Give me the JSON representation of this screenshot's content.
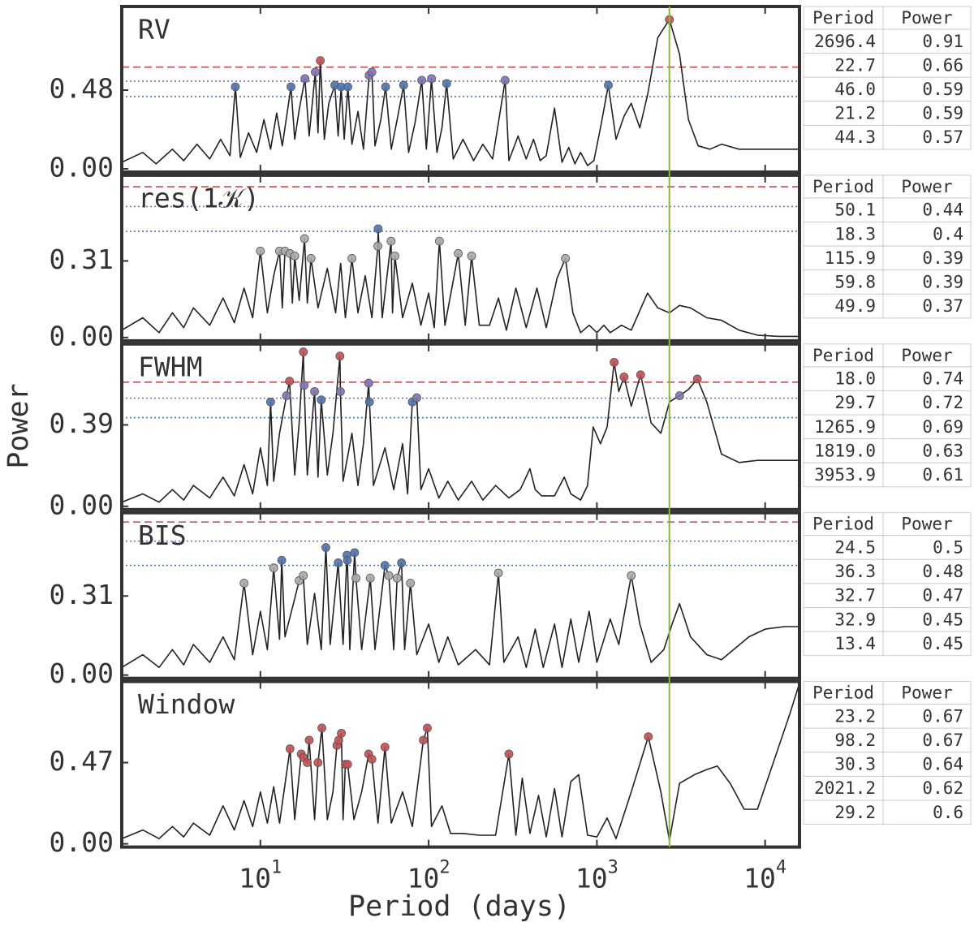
{
  "figure": {
    "xlabel": "Period (days)",
    "ylabel": "Power",
    "xscale": "log",
    "xlim": [
      1.5,
      16000
    ],
    "xticks": [
      {
        "value": 10,
        "label": "10",
        "exponent": "1"
      },
      {
        "value": 100,
        "label": "10",
        "exponent": "2"
      },
      {
        "value": 1000,
        "label": "10",
        "exponent": "3"
      },
      {
        "value": 10000,
        "label": "10",
        "exponent": "4"
      }
    ],
    "vline": {
      "value": 2696.4,
      "color": "#8db83a"
    },
    "peak_default_color": "#a8a8a8",
    "line_color": "#222222"
  },
  "chart_data": [
    {
      "type": "line",
      "title": "RV",
      "ylim": [
        0,
        0.98
      ],
      "yticks": [
        {
          "value": 0,
          "label": "0.00"
        },
        0.48
      ],
      "thresholds": [
        {
          "value": 0.62,
          "color": "#c44e52",
          "dash": "9 5"
        },
        {
          "value": 0.535,
          "color": "#8172b2",
          "dash": "2 3"
        },
        {
          "value": 0.44,
          "color": "#4c72b0",
          "dash": "2 3"
        }
      ],
      "x": [
        1.5,
        2,
        2.4,
        3,
        3.5,
        4.2,
        5,
        5.8,
        6.6,
        7.1,
        7.6,
        8.5,
        9.5,
        10.5,
        11.5,
        12.5,
        13.5,
        15.2,
        16,
        17,
        18.4,
        19.5,
        21.2,
        22,
        22.7,
        24,
        25.5,
        27.7,
        29,
        30.2,
        31.5,
        33.1,
        35,
        38,
        41,
        44.3,
        46,
        48,
        52,
        55.5,
        60,
        65,
        71,
        76,
        83,
        91,
        97,
        104,
        112,
        120,
        128,
        140,
        160,
        185,
        210,
        240,
        285,
        300,
        340,
        380,
        420,
        460,
        500,
        560,
        620,
        680,
        740,
        800,
        880,
        960,
        1050,
        1170,
        1300,
        1450,
        1600,
        1800,
        2000,
        2300,
        2696.4,
        3100,
        3500,
        4000,
        4700,
        5500,
        7000,
        9000,
        12000,
        16000
      ],
      "values": [
        0.04,
        0.1,
        0.03,
        0.12,
        0.05,
        0.15,
        0.06,
        0.18,
        0.08,
        0.5,
        0.07,
        0.22,
        0.1,
        0.3,
        0.12,
        0.34,
        0.14,
        0.5,
        0.18,
        0.36,
        0.55,
        0.2,
        0.59,
        0.22,
        0.66,
        0.18,
        0.4,
        0.51,
        0.2,
        0.5,
        0.18,
        0.5,
        0.15,
        0.35,
        0.12,
        0.57,
        0.59,
        0.14,
        0.3,
        0.5,
        0.12,
        0.3,
        0.51,
        0.1,
        0.28,
        0.54,
        0.12,
        0.55,
        0.1,
        0.25,
        0.52,
        0.06,
        0.18,
        0.05,
        0.15,
        0.06,
        0.54,
        0.05,
        0.2,
        0.06,
        0.18,
        0.05,
        0.08,
        0.37,
        0.04,
        0.13,
        0.03,
        0.1,
        0.02,
        0.05,
        0.25,
        0.51,
        0.18,
        0.32,
        0.4,
        0.25,
        0.45,
        0.8,
        0.91,
        0.7,
        0.3,
        0.14,
        0.12,
        0.15,
        0.12,
        0.12,
        0.12,
        0.12
      ],
      "peaks": {
        "x": [
          7.1,
          15.2,
          18.4,
          21.2,
          22.7,
          27.7,
          30.2,
          33.1,
          44.3,
          46,
          55.5,
          71,
          91,
          104,
          128,
          285,
          1170,
          2696.4
        ],
        "values": [
          0.5,
          0.5,
          0.55,
          0.59,
          0.66,
          0.51,
          0.5,
          0.5,
          0.57,
          0.59,
          0.5,
          0.51,
          0.54,
          0.55,
          0.52,
          0.54,
          0.51,
          0.91
        ]
      },
      "table": {
        "columns": [
          "Period",
          "Power"
        ],
        "rows": [
          [
            "2696.4",
            "0.91"
          ],
          [
            "22.7",
            "0.66"
          ],
          [
            "46.0",
            "0.59"
          ],
          [
            "21.2",
            "0.59"
          ],
          [
            "44.3",
            "0.57"
          ]
        ]
      }
    },
    {
      "type": "line",
      "title": "res(1𝒦)",
      "ylim": [
        0,
        0.65
      ],
      "yticks": [
        {
          "value": 0,
          "label": "0.00"
        },
        0.31
      ],
      "thresholds": [
        {
          "value": 0.61,
          "color": "#c44e52",
          "dash": "9 5"
        },
        {
          "value": 0.53,
          "color": "#8172b2",
          "dash": "2 3"
        },
        {
          "value": 0.43,
          "color": "#4c72b0",
          "dash": "2 3"
        }
      ],
      "x": [
        1.5,
        2,
        2.5,
        3,
        3.5,
        4,
        5,
        6,
        7,
        8,
        9,
        10,
        11,
        12,
        13,
        13.5,
        14,
        15,
        15.5,
        16,
        17,
        18.3,
        19,
        20,
        22,
        25,
        28,
        30,
        32,
        35,
        38,
        42,
        46,
        49.9,
        50.1,
        53,
        59.8,
        61,
        63,
        70,
        80,
        90,
        100,
        108,
        115.9,
        125,
        150,
        165,
        180,
        200,
        230,
        260,
        290,
        330,
        380,
        440,
        500,
        580,
        650,
        720,
        800,
        900,
        1000,
        1100,
        1200,
        1400,
        1600,
        2000,
        2300,
        2700,
        3100,
        3600,
        4500,
        5500,
        7000,
        9000,
        12000,
        16000
      ],
      "values": [
        0.03,
        0.08,
        0.02,
        0.1,
        0.04,
        0.12,
        0.05,
        0.16,
        0.06,
        0.2,
        0.08,
        0.35,
        0.1,
        0.25,
        0.35,
        0.12,
        0.35,
        0.34,
        0.14,
        0.33,
        0.15,
        0.4,
        0.14,
        0.32,
        0.12,
        0.28,
        0.1,
        0.3,
        0.08,
        0.32,
        0.1,
        0.25,
        0.08,
        0.37,
        0.44,
        0.08,
        0.39,
        0.1,
        0.33,
        0.08,
        0.22,
        0.05,
        0.18,
        0.04,
        0.39,
        0.05,
        0.34,
        0.05,
        0.33,
        0.05,
        0.05,
        0.16,
        0.03,
        0.2,
        0.04,
        0.2,
        0.04,
        0.24,
        0.32,
        0.1,
        0.02,
        0.05,
        0.02,
        0.05,
        0.02,
        0.05,
        0.03,
        0.18,
        0.12,
        0.1,
        0.13,
        0.12,
        0.08,
        0.07,
        0.03,
        0.01,
        0.005,
        0.005
      ],
      "peaks": {
        "x": [
          10,
          13,
          14,
          15,
          16,
          18.3,
          20,
          35,
          49.9,
          50.1,
          59.8,
          63,
          115.9,
          150,
          180,
          650
        ],
        "values": [
          0.35,
          0.35,
          0.35,
          0.34,
          0.33,
          0.4,
          0.32,
          0.32,
          0.37,
          0.44,
          0.39,
          0.33,
          0.39,
          0.34,
          0.33,
          0.32
        ]
      },
      "table": {
        "columns": [
          "Period",
          "Power"
        ],
        "rows": [
          [
            "50.1",
            "0.44"
          ],
          [
            "18.3",
            "0.4"
          ],
          [
            "115.9",
            "0.39"
          ],
          [
            "59.8",
            "0.39"
          ],
          [
            "49.9",
            "0.37"
          ]
        ]
      }
    },
    {
      "type": "line",
      "title": "FWHM",
      "ylim": [
        0,
        0.77
      ],
      "yticks": [
        {
          "value": 0,
          "label": "0.00"
        },
        0.39
      ],
      "thresholds": [
        {
          "value": 0.595,
          "color": "#c44e52",
          "dash": "9 5"
        },
        {
          "value": 0.518,
          "color": "#8172b2",
          "dash": "2 3"
        },
        {
          "value": 0.425,
          "color": "#4c72b0",
          "dash": "2 3"
        }
      ],
      "x": [
        1.5,
        2,
        2.5,
        3,
        3.5,
        4,
        5,
        6,
        7,
        8,
        9,
        10,
        11,
        11.5,
        12,
        13,
        14.3,
        14.9,
        16,
        17,
        18.0,
        18.2,
        19,
        21,
        22,
        23,
        25,
        27,
        29.7,
        29.9,
        31,
        35,
        38,
        41,
        44,
        44.5,
        47,
        55,
        62,
        70,
        75,
        80,
        85,
        90,
        100,
        115,
        130,
        150,
        180,
        210,
        250,
        300,
        350,
        400,
        430,
        470,
        560,
        640,
        700,
        800,
        880,
        950,
        1050,
        1150,
        1265.9,
        1350,
        1450,
        1600,
        1819,
        2100,
        2400,
        2700,
        3100,
        3500,
        3953.9,
        4500,
        5500,
        7000,
        9000,
        12000,
        16000
      ],
      "values": [
        0.02,
        0.06,
        0.02,
        0.08,
        0.03,
        0.1,
        0.04,
        0.14,
        0.05,
        0.2,
        0.06,
        0.28,
        0.1,
        0.5,
        0.12,
        0.35,
        0.53,
        0.6,
        0.15,
        0.4,
        0.74,
        0.58,
        0.15,
        0.55,
        0.14,
        0.51,
        0.15,
        0.35,
        0.72,
        0.55,
        0.12,
        0.35,
        0.1,
        0.3,
        0.59,
        0.5,
        0.1,
        0.28,
        0.08,
        0.3,
        0.06,
        0.5,
        0.52,
        0.08,
        0.18,
        0.04,
        0.12,
        0.03,
        0.12,
        0.03,
        0.1,
        0.04,
        0.08,
        0.18,
        0.08,
        0.05,
        0.05,
        0.14,
        0.06,
        0.03,
        0.1,
        0.38,
        0.3,
        0.38,
        0.69,
        0.55,
        0.62,
        0.48,
        0.63,
        0.4,
        0.35,
        0.5,
        0.53,
        0.56,
        0.61,
        0.5,
        0.25,
        0.21,
        0.22,
        0.22,
        0.22
      ],
      "peaks": {
        "x": [
          11.5,
          14.3,
          14.9,
          18.0,
          18.2,
          21,
          23,
          29.7,
          29.9,
          44,
          44.5,
          80,
          85,
          1265.9,
          1450,
          1819,
          3100,
          3953.9
        ],
        "values": [
          0.5,
          0.53,
          0.6,
          0.74,
          0.58,
          0.55,
          0.51,
          0.72,
          0.55,
          0.59,
          0.5,
          0.5,
          0.52,
          0.69,
          0.62,
          0.63,
          0.53,
          0.61
        ]
      },
      "table": {
        "columns": [
          "Period",
          "Power"
        ],
        "rows": [
          [
            "18.0",
            "0.74"
          ],
          [
            "29.7",
            "0.72"
          ],
          [
            "1265.9",
            "0.69"
          ],
          [
            "1819.0",
            "0.63"
          ],
          [
            "3953.9",
            "0.61"
          ]
        ]
      }
    },
    {
      "type": "line",
      "title": "BIS",
      "ylim": [
        0,
        0.63
      ],
      "yticks": [
        {
          "value": 0,
          "label": "0.00"
        },
        0.31
      ],
      "thresholds": [
        {
          "value": 0.6,
          "color": "#c44e52",
          "dash": "9 5"
        },
        {
          "value": 0.525,
          "color": "#8172b2",
          "dash": "2 3"
        },
        {
          "value": 0.43,
          "color": "#4c72b0",
          "dash": "2 3"
        }
      ],
      "x": [
        1.5,
        2,
        2.5,
        3,
        3.5,
        4,
        5,
        6,
        7,
        8,
        9,
        10,
        11,
        12,
        13,
        13.4,
        14,
        16,
        17,
        18,
        19,
        21,
        23,
        24.5,
        26,
        29,
        31,
        32.7,
        32.9,
        34,
        36.3,
        37,
        40,
        45,
        48,
        55,
        58,
        62,
        65,
        69,
        72,
        78,
        85,
        100,
        115,
        130,
        150,
        190,
        230,
        260,
        280,
        340,
        380,
        430,
        480,
        560,
        620,
        700,
        780,
        900,
        1000,
        1200,
        1350,
        1600,
        1800,
        2100,
        2500,
        2800,
        3100,
        3600,
        4500,
        5500,
        6500,
        8000,
        10000,
        13000,
        16000
      ],
      "values": [
        0.03,
        0.08,
        0.03,
        0.1,
        0.04,
        0.12,
        0.05,
        0.15,
        0.06,
        0.36,
        0.08,
        0.25,
        0.1,
        0.42,
        0.14,
        0.45,
        0.15,
        0.3,
        0.37,
        0.39,
        0.12,
        0.32,
        0.1,
        0.5,
        0.12,
        0.44,
        0.12,
        0.47,
        0.45,
        0.1,
        0.48,
        0.38,
        0.1,
        0.38,
        0.1,
        0.43,
        0.39,
        0.1,
        0.38,
        0.44,
        0.1,
        0.36,
        0.08,
        0.2,
        0.05,
        0.15,
        0.04,
        0.1,
        0.04,
        0.4,
        0.05,
        0.15,
        0.03,
        0.18,
        0.03,
        0.2,
        0.03,
        0.22,
        0.05,
        0.25,
        0.05,
        0.22,
        0.12,
        0.39,
        0.2,
        0.05,
        0.1,
        0.2,
        0.28,
        0.15,
        0.08,
        0.06,
        0.1,
        0.15,
        0.18,
        0.19,
        0.19
      ],
      "peaks": {
        "x": [
          8,
          12,
          13.4,
          17,
          18,
          24.5,
          29,
          32.7,
          32.9,
          36.3,
          37,
          45,
          55,
          58,
          65,
          69,
          78,
          260,
          1600
        ],
        "values": [
          0.36,
          0.42,
          0.45,
          0.37,
          0.39,
          0.5,
          0.44,
          0.47,
          0.45,
          0.48,
          0.38,
          0.38,
          0.43,
          0.39,
          0.38,
          0.44,
          0.36,
          0.4,
          0.39
        ]
      },
      "table": {
        "columns": [
          "Period",
          "Power"
        ],
        "rows": [
          [
            "24.5",
            "0.5"
          ],
          [
            "36.3",
            "0.48"
          ],
          [
            "32.7",
            "0.47"
          ],
          [
            "32.9",
            "0.45"
          ],
          [
            "13.4",
            "0.45"
          ]
        ]
      }
    },
    {
      "type": "line",
      "title": "Window",
      "ylim": [
        0,
        0.93
      ],
      "yticks": [
        {
          "value": 0,
          "label": "0.00"
        },
        0.47
      ],
      "thresholds": [],
      "peak_color": "#c44e52",
      "x": [
        1.5,
        2,
        2.5,
        3,
        3.5,
        4,
        5,
        6,
        7,
        8,
        9,
        10,
        11,
        12,
        13,
        15,
        16,
        17.5,
        18,
        19,
        19.5,
        21,
        22,
        23.2,
        25,
        27,
        28.5,
        29.2,
        30.3,
        31,
        32,
        33,
        36,
        40,
        44,
        46,
        50,
        55,
        60,
        70,
        80,
        93,
        98.2,
        104,
        120,
        135,
        160,
        200,
        250,
        300,
        330,
        360,
        400,
        450,
        500,
        560,
        620,
        700,
        780,
        880,
        1000,
        1150,
        1300,
        1600,
        2021.2,
        2400,
        2700,
        3100,
        3800,
        4500,
        5200,
        6200,
        7500,
        9000,
        11000,
        14000,
        16000
      ],
      "values": [
        0.03,
        0.08,
        0.03,
        0.1,
        0.04,
        0.12,
        0.05,
        0.22,
        0.08,
        0.25,
        0.1,
        0.3,
        0.12,
        0.33,
        0.12,
        0.55,
        0.14,
        0.52,
        0.5,
        0.47,
        0.6,
        0.14,
        0.47,
        0.67,
        0.14,
        0.3,
        0.57,
        0.6,
        0.64,
        0.14,
        0.46,
        0.46,
        0.14,
        0.3,
        0.52,
        0.49,
        0.12,
        0.56,
        0.12,
        0.3,
        0.1,
        0.6,
        0.67,
        0.1,
        0.22,
        0.06,
        0.06,
        0.05,
        0.05,
        0.52,
        0.05,
        0.38,
        0.06,
        0.28,
        0.04,
        0.32,
        0.04,
        0.36,
        0.4,
        0.05,
        0.04,
        0.15,
        0.03,
        0.3,
        0.62,
        0.3,
        0.02,
        0.35,
        0.4,
        0.43,
        0.45,
        0.35,
        0.2,
        0.2,
        0.45,
        0.75,
        0.93
      ],
      "peaks": {
        "x": [
          15,
          17.5,
          18,
          19,
          19.5,
          22,
          23.2,
          28.5,
          29.2,
          30.3,
          32,
          33,
          44,
          46,
          55,
          93,
          98.2,
          300,
          2021.2
        ],
        "values": [
          0.55,
          0.52,
          0.5,
          0.47,
          0.6,
          0.47,
          0.67,
          0.57,
          0.6,
          0.64,
          0.46,
          0.46,
          0.52,
          0.49,
          0.56,
          0.6,
          0.67,
          0.52,
          0.62
        ]
      },
      "table": {
        "columns": [
          "Period",
          "Power"
        ],
        "rows": [
          [
            "23.2",
            "0.67"
          ],
          [
            "98.2",
            "0.67"
          ],
          [
            "30.3",
            "0.64"
          ],
          [
            "2021.2",
            "0.62"
          ],
          [
            "29.2",
            "0.6"
          ]
        ]
      }
    }
  ]
}
